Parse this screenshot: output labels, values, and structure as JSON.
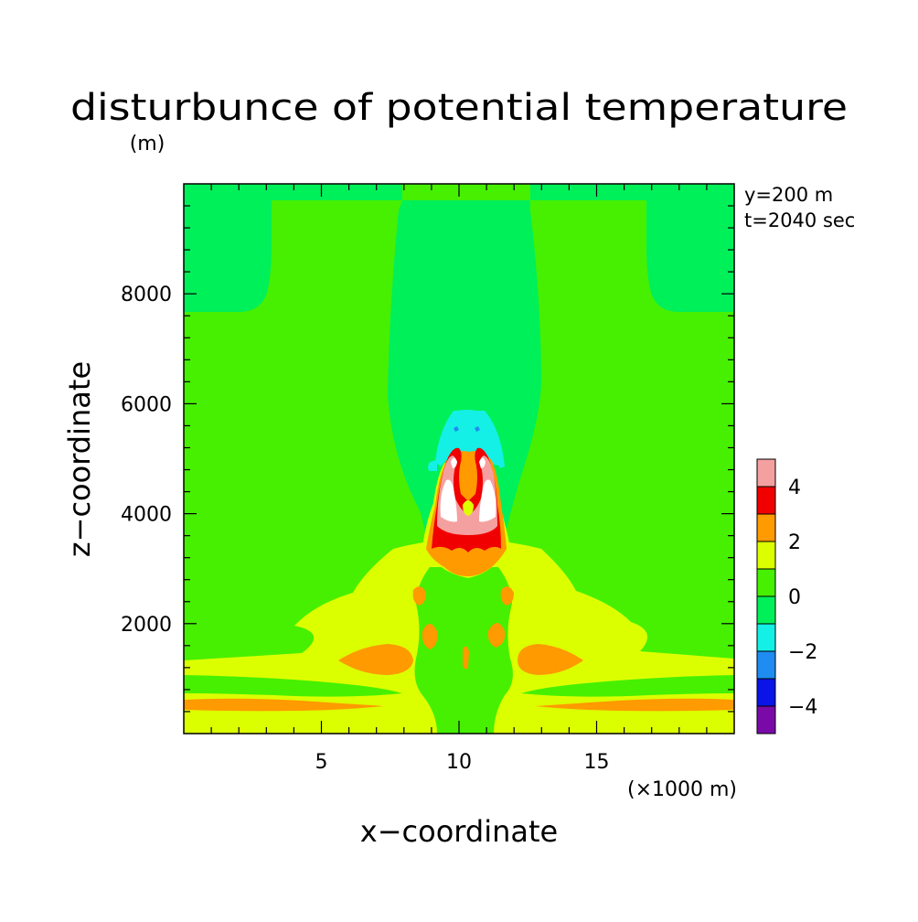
{
  "chart_data": {
    "type": "heatmap",
    "title": "disturbunce of potential temperature",
    "z_unit_label": "(m)",
    "xlabel": "x−coordinate",
    "ylabel": "z−coordinate",
    "x_unit_label": "(×1000 m)",
    "xlim": [
      0,
      20
    ],
    "ylim": [
      0,
      10000
    ],
    "x_ticks": [
      5,
      10,
      15
    ],
    "y_ticks": [
      2000,
      4000,
      6000,
      8000
    ],
    "info_lines": [
      "y=200 m",
      "t=2040 sec"
    ],
    "colorbar": {
      "range": [
        -5,
        5
      ],
      "tick_values": [
        4,
        2,
        0,
        -2,
        -4
      ],
      "tick_labels": [
        "4",
        "2",
        "0",
        "−2",
        "−4"
      ],
      "levels": [
        {
          "from": -5,
          "to": -4,
          "color": "#7a0aa8"
        },
        {
          "from": -4,
          "to": -3,
          "color": "#0a14e6"
        },
        {
          "from": -3,
          "to": -2,
          "color": "#1e8cf0"
        },
        {
          "from": -2,
          "to": -1,
          "color": "#14f0e6"
        },
        {
          "from": -1,
          "to": 0,
          "color": "#00f05a"
        },
        {
          "from": 0,
          "to": 1,
          "color": "#46f000"
        },
        {
          "from": 1,
          "to": 2,
          "color": "#dcff00"
        },
        {
          "from": 2,
          "to": 3,
          "color": "#ff9a00"
        },
        {
          "from": 3,
          "to": 4,
          "color": "#f00000"
        },
        {
          "from": 4,
          "to": 5,
          "color": "#f5a0a0"
        }
      ]
    },
    "field_summary": {
      "background_value_range": [
        0,
        1
      ],
      "upper_side_regions": {
        "x": [
          [
            0,
            3
          ],
          [
            17,
            20
          ]
        ],
        "z": [
          7700,
          10000
        ],
        "value_range": [
          -1,
          0
        ]
      },
      "central_plume": {
        "x_center": 10.2,
        "z_top": 5900,
        "value_range": [
          -1,
          0
        ]
      },
      "warm_core": {
        "x": [
          8.9,
          11.5
        ],
        "z": [
          3200,
          5300
        ],
        "value_range": [
          3,
          5
        ],
        "max_value": 5
      },
      "cool_cap": {
        "x": [
          8.8,
          11.5
        ],
        "z": [
          4800,
          5900
        ],
        "value_range": [
          -2,
          -1
        ]
      },
      "low_level_warm_band": {
        "z": [
          0,
          3000
        ],
        "value_range": [
          1,
          3
        ]
      }
    }
  }
}
